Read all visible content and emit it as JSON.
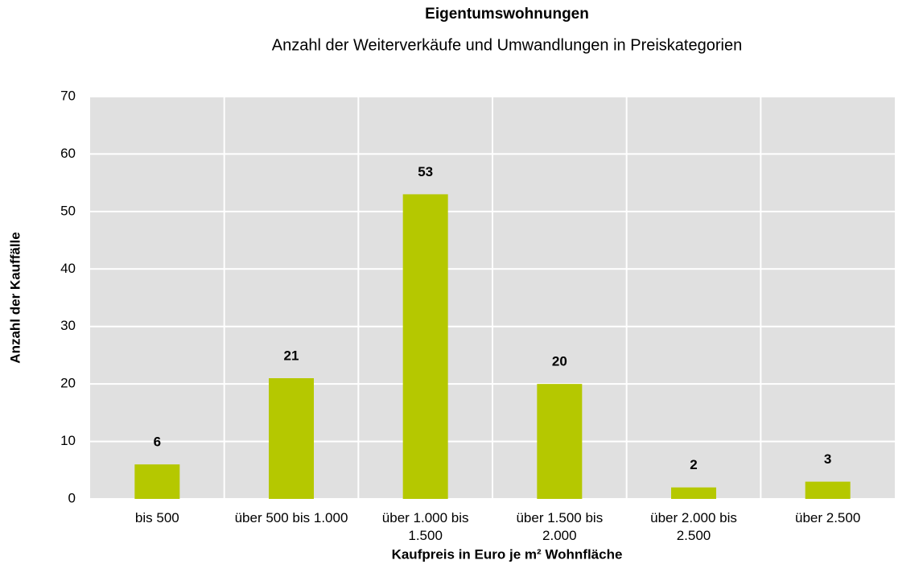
{
  "chart_data": {
    "type": "bar",
    "title": "Eigentumswohnungen",
    "subtitle": "Anzahl der Weiterverkäufe und Umwandlungen in Preiskategorien",
    "x_label": "Kaufpreis in Euro je m² Wohnfläche",
    "y_label": "Anzahl der Kauffälle",
    "categories": [
      "bis 500",
      "über 500 bis 1.000",
      "über 1.000 bis 1.500",
      "über 1.500 bis 2.000",
      "über 2.000 bis 2.500",
      "über 2.500"
    ],
    "values": [
      6,
      21,
      53,
      20,
      2,
      3
    ],
    "color": "#b5c800",
    "ylim": [
      0,
      70
    ],
    "yticks": [
      0,
      10,
      20,
      30,
      40,
      50,
      60,
      70
    ],
    "grid": true
  }
}
